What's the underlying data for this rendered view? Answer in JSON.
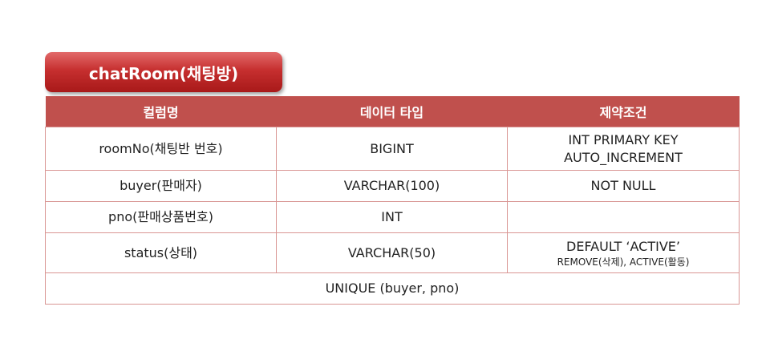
{
  "title": "chatRoom(채팅방)",
  "columns": [
    "컬럼명",
    "데이터 타입",
    "제약조건"
  ],
  "rows": [
    {
      "name": "roomNo(채팅반 번호)",
      "type": "BIGINT",
      "constraint_line1": "INT PRIMARY KEY",
      "constraint_line2": "AUTO_INCREMENT"
    },
    {
      "name": "buyer(판매자)",
      "type": "VARCHAR(100)",
      "constraint_line1": "NOT NULL"
    },
    {
      "name": "pno(판매상품번호)",
      "type": "INT",
      "constraint_line1": ""
    },
    {
      "name": "status(상태)",
      "type": "VARCHAR(50)",
      "constraint_line1": "DEFAULT ‘ACTIVE’",
      "constraint_line2": "REMOVE(삭제), ACTIVE(활동)"
    }
  ],
  "footer": "UNIQUE (buyer, pno)",
  "colors": {
    "header_bg": "#c0504d",
    "border": "#d99694",
    "badge_top": "#e26a6a",
    "badge_bottom": "#a81919"
  }
}
